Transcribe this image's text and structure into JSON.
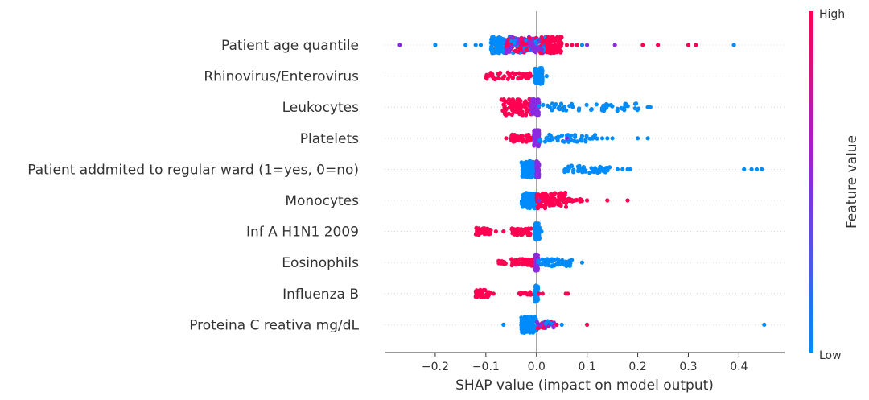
{
  "chart_data": {
    "type": "scatter",
    "subtype": "shap-beeswarm",
    "xlabel": "SHAP value (impact on model output)",
    "xlim": [
      -0.3,
      0.49
    ],
    "xticks": [
      -0.2,
      -0.1,
      0.0,
      0.1,
      0.2,
      0.3,
      0.4
    ],
    "xtick_labels": [
      "−0.2",
      "−0.1",
      "0.0",
      "0.1",
      "0.2",
      "0.3",
      "0.4"
    ],
    "colorbar": {
      "label": "Feature value",
      "high": "High",
      "low": "Low",
      "high_color": "#ff0052",
      "mid_color": "#8a2be2",
      "low_color": "#008bfb"
    },
    "features": [
      {
        "name": "Patient age quantile",
        "clusters": [
          {
            "from": -0.09,
            "to": -0.06,
            "color": "low",
            "density": "high"
          },
          {
            "from": -0.06,
            "to": -0.02,
            "color": "mixed",
            "density": "high"
          },
          {
            "from": -0.02,
            "to": 0.02,
            "color": "mixed",
            "density": "high"
          },
          {
            "from": 0.02,
            "to": 0.05,
            "color": "high",
            "density": "high"
          }
        ],
        "points": [
          {
            "x": -0.27,
            "c": "mid"
          },
          {
            "x": -0.2,
            "c": "low"
          },
          {
            "x": -0.14,
            "c": "low"
          },
          {
            "x": -0.12,
            "c": "low"
          },
          {
            "x": -0.11,
            "c": "low"
          },
          {
            "x": 0.06,
            "c": "high"
          },
          {
            "x": 0.07,
            "c": "high"
          },
          {
            "x": 0.08,
            "c": "high"
          },
          {
            "x": 0.09,
            "c": "low"
          },
          {
            "x": 0.1,
            "c": "mid"
          },
          {
            "x": 0.155,
            "c": "mid"
          },
          {
            "x": 0.21,
            "c": "high"
          },
          {
            "x": 0.24,
            "c": "high"
          },
          {
            "x": 0.3,
            "c": "high"
          },
          {
            "x": 0.315,
            "c": "high"
          },
          {
            "x": 0.39,
            "c": "low"
          }
        ]
      },
      {
        "name": "Rhinovirus/Enterovirus",
        "clusters": [
          {
            "from": -0.1,
            "to": -0.01,
            "color": "high",
            "density": "medium"
          },
          {
            "from": -0.003,
            "to": 0.012,
            "color": "low",
            "density": "high"
          }
        ],
        "points": [
          {
            "x": 0.02,
            "c": "low"
          }
        ]
      },
      {
        "name": "Leukocytes",
        "clusters": [
          {
            "from": -0.07,
            "to": -0.01,
            "color": "high",
            "density": "high"
          },
          {
            "from": -0.01,
            "to": 0.005,
            "color": "mid",
            "density": "high"
          },
          {
            "from": 0.005,
            "to": 0.21,
            "color": "low",
            "density": "medium"
          }
        ],
        "points": [
          {
            "x": 0.22,
            "c": "low"
          },
          {
            "x": 0.225,
            "c": "low"
          }
        ]
      },
      {
        "name": "Platelets",
        "clusters": [
          {
            "from": -0.05,
            "to": -0.005,
            "color": "high",
            "density": "medium"
          },
          {
            "from": -0.005,
            "to": 0.005,
            "color": "mid",
            "density": "high"
          },
          {
            "from": 0.005,
            "to": 0.12,
            "color": "low",
            "density": "medium"
          }
        ],
        "points": [
          {
            "x": -0.06,
            "c": "high"
          },
          {
            "x": 0.13,
            "c": "low"
          },
          {
            "x": 0.14,
            "c": "low"
          },
          {
            "x": 0.15,
            "c": "low"
          },
          {
            "x": 0.2,
            "c": "low"
          },
          {
            "x": 0.22,
            "c": "low"
          },
          {
            "x": 0.06,
            "c": "mid"
          }
        ]
      },
      {
        "name": "Patient addmited to regular ward (1=yes, 0=no)",
        "clusters": [
          {
            "from": -0.03,
            "to": 0.0,
            "color": "low",
            "density": "high"
          },
          {
            "from": 0.0,
            "to": 0.005,
            "color": "mid",
            "density": "high"
          },
          {
            "from": 0.055,
            "to": 0.15,
            "color": "low",
            "density": "medium"
          }
        ],
        "points": [
          {
            "x": 0.16,
            "c": "low"
          },
          {
            "x": 0.17,
            "c": "low"
          },
          {
            "x": 0.18,
            "c": "low"
          },
          {
            "x": 0.185,
            "c": "low"
          },
          {
            "x": 0.41,
            "c": "low"
          },
          {
            "x": 0.425,
            "c": "low"
          },
          {
            "x": 0.435,
            "c": "low"
          },
          {
            "x": 0.445,
            "c": "low"
          }
        ]
      },
      {
        "name": "Monocytes",
        "clusters": [
          {
            "from": -0.03,
            "to": 0.0,
            "color": "low",
            "density": "high"
          },
          {
            "from": 0.0,
            "to": 0.06,
            "color": "high",
            "density": "high"
          },
          {
            "from": 0.06,
            "to": 0.09,
            "color": "high",
            "density": "low"
          }
        ],
        "points": [
          {
            "x": 0.1,
            "c": "high"
          },
          {
            "x": 0.14,
            "c": "high"
          },
          {
            "x": 0.18,
            "c": "high"
          },
          {
            "x": 0.005,
            "c": "mid"
          }
        ]
      },
      {
        "name": "Inf A H1N1 2009",
        "clusters": [
          {
            "from": -0.12,
            "to": -0.09,
            "color": "high",
            "density": "medium"
          },
          {
            "from": -0.05,
            "to": -0.01,
            "color": "high",
            "density": "medium"
          },
          {
            "from": -0.003,
            "to": 0.006,
            "color": "low",
            "density": "high"
          }
        ],
        "points": [
          {
            "x": -0.08,
            "c": "high"
          },
          {
            "x": -0.065,
            "c": "high"
          },
          {
            "x": 0.01,
            "c": "low"
          }
        ]
      },
      {
        "name": "Eosinophils",
        "clusters": [
          {
            "from": -0.075,
            "to": -0.06,
            "color": "high",
            "density": "low"
          },
          {
            "from": -0.05,
            "to": -0.003,
            "color": "high",
            "density": "medium"
          },
          {
            "from": -0.003,
            "to": 0.003,
            "color": "mid",
            "density": "high"
          },
          {
            "from": 0.003,
            "to": 0.075,
            "color": "low",
            "density": "medium"
          }
        ],
        "points": [
          {
            "x": 0.09,
            "c": "low"
          }
        ]
      },
      {
        "name": "Influenza B",
        "clusters": [
          {
            "from": -0.12,
            "to": -0.09,
            "color": "high",
            "density": "medium"
          },
          {
            "from": -0.035,
            "to": -0.005,
            "color": "high",
            "density": "low"
          },
          {
            "from": -0.003,
            "to": 0.003,
            "color": "low",
            "density": "high"
          }
        ],
        "points": [
          {
            "x": -0.085,
            "c": "high"
          },
          {
            "x": 0.005,
            "c": "high"
          },
          {
            "x": 0.012,
            "c": "high"
          },
          {
            "x": 0.058,
            "c": "high"
          },
          {
            "x": 0.062,
            "c": "high"
          }
        ]
      },
      {
        "name": "Proteina C reativa mg/dL",
        "clusters": [
          {
            "from": -0.03,
            "to": 0.0,
            "color": "low",
            "density": "high"
          },
          {
            "from": 0.0,
            "to": 0.035,
            "color": "mixed",
            "density": "medium"
          }
        ],
        "points": [
          {
            "x": -0.065,
            "c": "low"
          },
          {
            "x": 0.04,
            "c": "high"
          },
          {
            "x": 0.05,
            "c": "low"
          },
          {
            "x": 0.1,
            "c": "high"
          },
          {
            "x": 0.45,
            "c": "low"
          }
        ]
      }
    ]
  }
}
